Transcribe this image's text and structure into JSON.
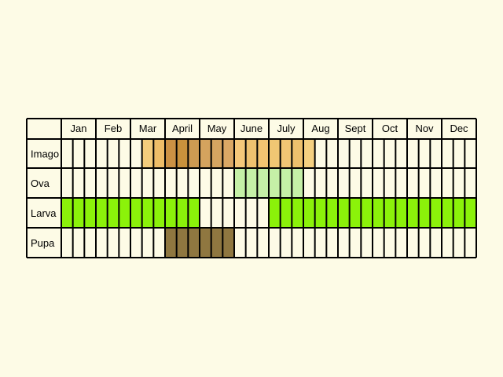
{
  "chart_data": {
    "type": "table",
    "months": [
      "Jan",
      "Feb",
      "Mar",
      "April",
      "May",
      "June",
      "July",
      "Aug",
      "Sept",
      "Oct",
      "Nov",
      "Dec"
    ],
    "rows": [
      {
        "label": "Imago",
        "cells": [
          null,
          null,
          null,
          null,
          null,
          null,
          null,
          "#f3cc7c",
          "#eebd68",
          "#cb9144",
          "#c8913c",
          "#cd9a52",
          "#d4a35e",
          "#d6a561",
          "#dba865",
          "#f5c87a",
          "#eec16f",
          "#f3c471",
          "#f1c773",
          "#f0c674",
          "#eec16d",
          "#f5d080",
          null,
          null,
          null,
          null,
          null,
          null,
          null,
          null,
          null,
          null,
          null,
          null,
          null,
          null
        ]
      },
      {
        "label": "Ova",
        "cells": [
          null,
          null,
          null,
          null,
          null,
          null,
          null,
          null,
          null,
          null,
          null,
          null,
          null,
          null,
          null,
          "#c5f0a7",
          "#c5f0a7",
          "#c5f0a7",
          "#c5f0a7",
          "#c5f0a7",
          "#c5f0a7",
          null,
          null,
          null,
          null,
          null,
          null,
          null,
          null,
          null,
          null,
          null,
          null,
          null,
          null,
          null
        ]
      },
      {
        "label": "Larva",
        "cells": [
          "#8bf20a",
          "#8bf20a",
          "#8bf20a",
          "#8bf20a",
          "#8bf20a",
          "#8bf20a",
          "#8bf20a",
          "#8bf20a",
          "#8bf20a",
          "#8bf20a",
          "#8bf20a",
          "#8bf20a",
          null,
          null,
          null,
          null,
          null,
          null,
          "#8bf20a",
          "#8bf20a",
          "#8bf20a",
          "#8bf20a",
          "#8bf20a",
          "#8bf20a",
          "#8bf20a",
          "#8bf20a",
          "#8bf20a",
          "#8bf20a",
          "#8bf20a",
          "#8bf20a",
          "#8bf20a",
          "#8bf20a",
          "#8bf20a",
          "#8bf20a",
          "#8bf20a",
          "#8bf20a"
        ]
      },
      {
        "label": "Pupa",
        "cells": [
          null,
          null,
          null,
          null,
          null,
          null,
          null,
          null,
          null,
          "#8f7740",
          "#8f7740",
          "#8f7740",
          "#8f7740",
          "#8f7740",
          "#8f7740",
          null,
          null,
          null,
          null,
          null,
          null,
          null,
          null,
          null,
          null,
          null,
          null,
          null,
          null,
          null,
          null,
          null,
          null,
          null,
          null,
          null
        ]
      }
    ],
    "empty_color": "#fdfbe6",
    "line_color": "#000000"
  }
}
